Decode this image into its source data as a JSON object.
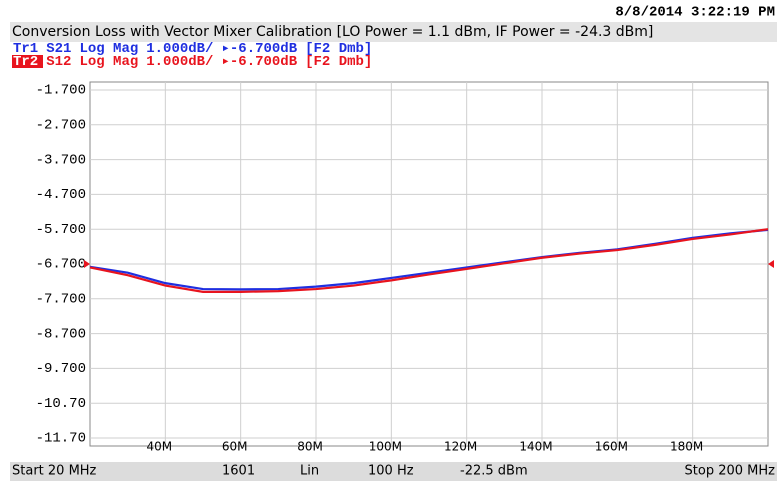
{
  "chart_data": {
    "type": "line",
    "timestamp": "8/8/2014 3:22:19 PM",
    "title": "Conversion Loss with Vector Mixer Calibration [LO Power = 1.1 dBm, IF Power = -24.3 dBm]",
    "x": [
      20,
      30,
      40,
      50,
      60,
      70,
      80,
      90,
      100,
      110,
      120,
      130,
      140,
      150,
      160,
      170,
      180,
      190,
      200
    ],
    "series": [
      {
        "trace": "Tr1",
        "name": "S21",
        "format": "Log Mag",
        "scale": "1.000dB/",
        "ref": "▸-6.700dB",
        "marker": "[F2 Dmb]",
        "color": "#1f2fe0",
        "values": [
          -6.78,
          -6.95,
          -7.25,
          -7.42,
          -7.43,
          -7.42,
          -7.35,
          -7.25,
          -7.1,
          -6.95,
          -6.8,
          -6.65,
          -6.5,
          -6.38,
          -6.28,
          -6.12,
          -5.95,
          -5.82,
          -5.72
        ]
      },
      {
        "trace": "Tr2",
        "name": "S12",
        "format": "Log Mag",
        "scale": "1.000dB/",
        "ref": "▸-6.700dB",
        "marker": "[F2 Dmb]",
        "color": "#e8141e",
        "values": [
          -6.8,
          -7.02,
          -7.32,
          -7.5,
          -7.5,
          -7.48,
          -7.42,
          -7.32,
          -7.17,
          -7.0,
          -6.84,
          -6.68,
          -6.52,
          -6.4,
          -6.3,
          -6.15,
          -5.98,
          -5.85,
          -5.7
        ]
      }
    ],
    "xlim": [
      20,
      200
    ],
    "xticks": [
      {
        "value": 40,
        "label": "40M"
      },
      {
        "value": 60,
        "label": "60M"
      },
      {
        "value": 80,
        "label": "80M"
      },
      {
        "value": 100,
        "label": "100M"
      },
      {
        "value": 120,
        "label": "120M"
      },
      {
        "value": 140,
        "label": "140M"
      },
      {
        "value": 160,
        "label": "160M"
      },
      {
        "value": 180,
        "label": "180M"
      }
    ],
    "ylim": [
      -11.7,
      -1.7
    ],
    "yticks": [
      {
        "value": -1.7,
        "label": "-1.700"
      },
      {
        "value": -2.7,
        "label": "-2.700"
      },
      {
        "value": -3.7,
        "label": "-3.700"
      },
      {
        "value": -4.7,
        "label": "-4.700"
      },
      {
        "value": -5.7,
        "label": "-5.700"
      },
      {
        "value": -6.7,
        "label": "-6.700"
      },
      {
        "value": -7.7,
        "label": "-7.700"
      },
      {
        "value": -8.7,
        "label": "-8.700"
      },
      {
        "value": -9.7,
        "label": "-9.700"
      },
      {
        "value": -10.7,
        "label": "-10.70"
      },
      {
        "value": -11.7,
        "label": "-11.70"
      }
    ],
    "grid": true,
    "status": [
      "Start 20 MHz",
      "1601",
      "Lin",
      "100 Hz",
      "-22.5 dBm",
      "Stop 200 MHz"
    ]
  }
}
